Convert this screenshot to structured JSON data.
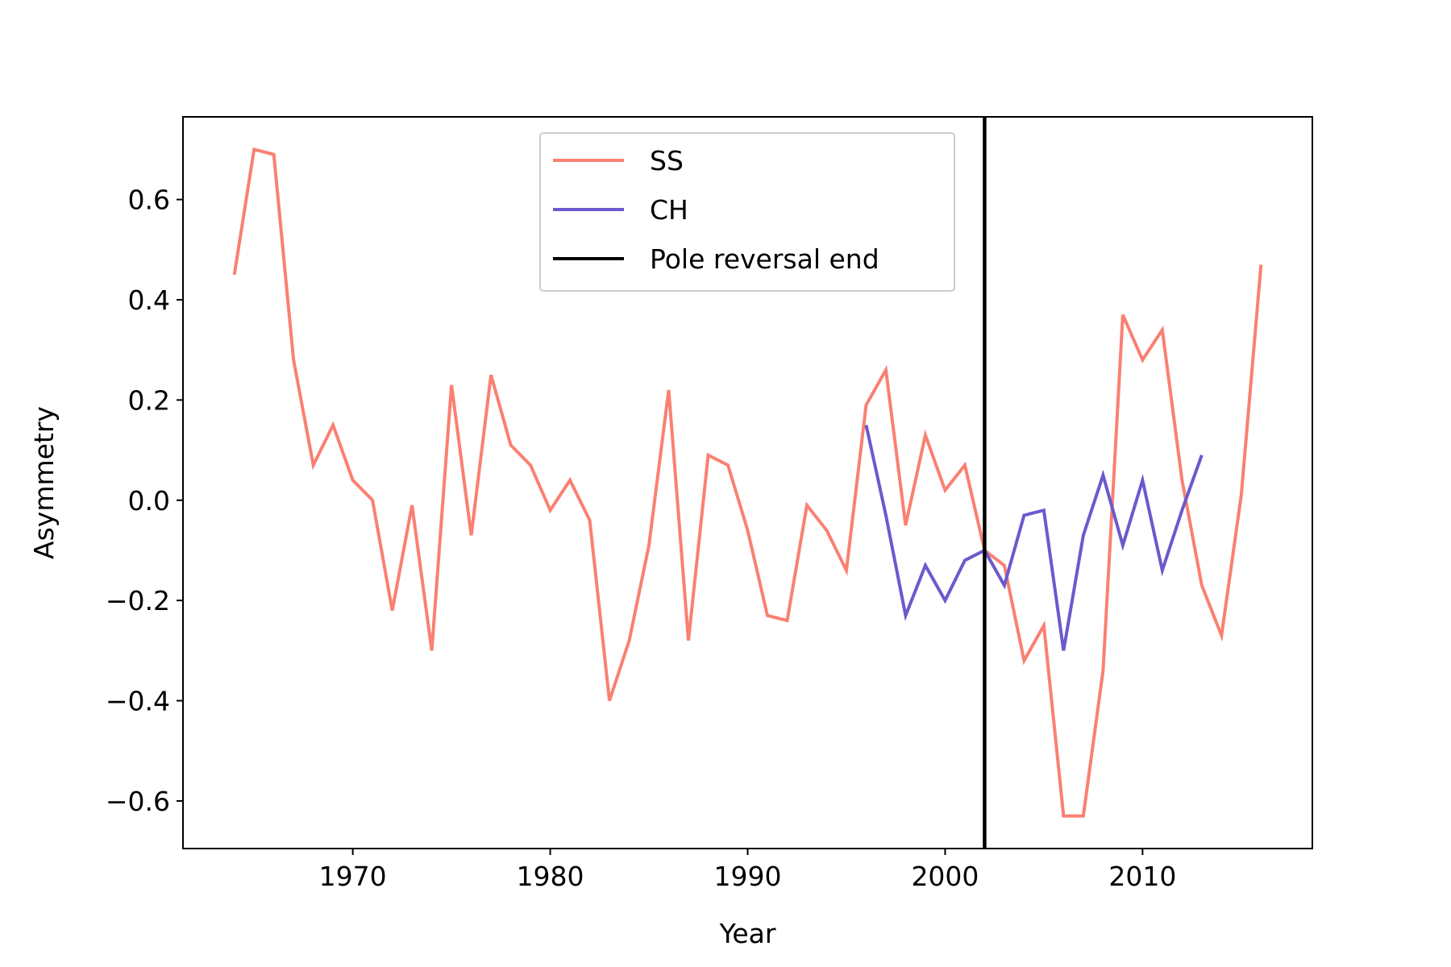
{
  "chart_data": {
    "type": "line",
    "title": "",
    "xlabel": "Year",
    "ylabel": "Asymmetry",
    "xlim": [
      1961.4,
      2018.6
    ],
    "ylim": [
      -0.695,
      0.765
    ],
    "xticks": [
      1970,
      1980,
      1990,
      2000,
      2010
    ],
    "yticks": [
      -0.6,
      -0.4,
      -0.2,
      0.0,
      0.2,
      0.4,
      0.6
    ],
    "ytick_labels": [
      "−0.6",
      "−0.4",
      "−0.2",
      "0.0",
      "0.2",
      "0.4",
      "0.6"
    ],
    "grid": false,
    "legend_position": "upper-center",
    "series": [
      {
        "name": "SS",
        "color": "#fa8072",
        "x": [
          1964,
          1965,
          1966,
          1967,
          1968,
          1969,
          1970,
          1971,
          1972,
          1973,
          1974,
          1975,
          1976,
          1977,
          1978,
          1979,
          1980,
          1981,
          1982,
          1983,
          1984,
          1985,
          1986,
          1987,
          1988,
          1989,
          1990,
          1991,
          1992,
          1993,
          1994,
          1995,
          1996,
          1997,
          1998,
          1999,
          2000,
          2001,
          2002,
          2003,
          2004,
          2005,
          2006,
          2007,
          2008,
          2009,
          2010,
          2011,
          2012,
          2013,
          2014,
          2015,
          2016
        ],
        "values": [
          0.45,
          0.7,
          0.69,
          0.28,
          0.07,
          0.15,
          0.04,
          0.0,
          -0.22,
          -0.01,
          -0.3,
          0.23,
          -0.07,
          0.25,
          0.11,
          0.07,
          -0.02,
          0.04,
          -0.04,
          -0.4,
          -0.28,
          -0.09,
          0.22,
          -0.28,
          0.09,
          0.07,
          -0.06,
          -0.23,
          -0.24,
          -0.01,
          -0.06,
          -0.14,
          0.19,
          0.26,
          -0.05,
          0.13,
          0.02,
          0.07,
          -0.1,
          -0.13,
          -0.32,
          -0.25,
          -0.63,
          -0.63,
          -0.34,
          0.37,
          0.28,
          0.34,
          0.04,
          -0.17,
          -0.27,
          0.01,
          0.47
        ]
      },
      {
        "name": "CH",
        "color": "#6a5acd",
        "x": [
          1996,
          1997,
          1998,
          1999,
          2000,
          2001,
          2002,
          2003,
          2004,
          2005,
          2006,
          2007,
          2008,
          2009,
          2010,
          2011,
          2012,
          2013
        ],
        "values": [
          0.15,
          -0.03,
          -0.23,
          -0.13,
          -0.2,
          -0.12,
          -0.1,
          -0.17,
          -0.03,
          -0.02,
          -0.3,
          -0.07,
          0.05,
          -0.09,
          0.04,
          -0.14,
          -0.02,
          0.09
        ]
      }
    ],
    "vlines": [
      {
        "name": "Pole reversal end",
        "x": 2002,
        "color": "#000000"
      }
    ]
  }
}
